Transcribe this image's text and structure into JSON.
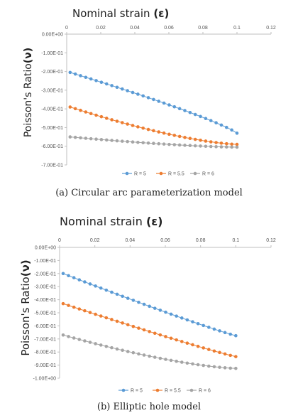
{
  "chart_data": [
    {
      "type": "line",
      "x_title": "Nominal strain",
      "x_title_symbol": "(ε)",
      "y_title": "Poisson's Ratio",
      "y_title_symbol": "(ν)",
      "caption": "(a)  Circular arc parameterization model",
      "x_ticks": [
        "0",
        "0.02",
        "0.04",
        "0.06",
        "0.08",
        "0.1",
        "0.12"
      ],
      "y_ticks": [
        "0.00E+00",
        "-1.00E-01",
        "-2.00E-01",
        "-3.00E-01",
        "-4.00E-01",
        "-5.00E-01",
        "-6.00E-01",
        "-7.00E-01"
      ],
      "xlim": [
        0,
        0.12
      ],
      "ylim": [
        -0.7,
        0
      ],
      "x_axis_position": "top",
      "grid": false,
      "legend_position": "bottom",
      "series": [
        {
          "name": "R = 5",
          "color": "#5b9bd5",
          "start": [
            0.002,
            -0.205
          ],
          "end": [
            0.1,
            -0.53
          ],
          "curve": "slightly-concave"
        },
        {
          "name": "R = 5.5",
          "color": "#ed7d31",
          "start": [
            0.002,
            -0.39
          ],
          "end": [
            0.1,
            -0.59
          ],
          "curve": "convex"
        },
        {
          "name": "R = 6",
          "color": "#a5a5a5",
          "start": [
            0.002,
            -0.55
          ],
          "end": [
            0.1,
            -0.605
          ],
          "curve": "convex"
        }
      ]
    },
    {
      "type": "line",
      "x_title": "Nominal strain",
      "x_title_symbol": "(ε)",
      "y_title": "Poisson's Ratio",
      "y_title_symbol": "(ν)",
      "caption": "(b)  Elliptic hole model",
      "x_ticks": [
        "0",
        "0.02",
        "0.04",
        "0.06",
        "0.08",
        "0.1",
        "0.12"
      ],
      "y_ticks": [
        "0.00E+00",
        "-1.00E-01",
        "-2.00E-01",
        "-3.00E-01",
        "-4.00E-01",
        "-5.00E-01",
        "-6.00E-01",
        "-7.00E-01",
        "-8.00E-01",
        "-9.00E-01",
        "-1.00E+00"
      ],
      "xlim": [
        0,
        0.12
      ],
      "ylim": [
        -1.0,
        0
      ],
      "x_axis_position": "top",
      "grid": false,
      "legend_position": "bottom",
      "series": [
        {
          "name": "R = 5",
          "color": "#5b9bd5",
          "start": [
            0.002,
            -0.2
          ],
          "end": [
            0.1,
            -0.675
          ],
          "curve": "near-linear"
        },
        {
          "name": "R = 5.5",
          "color": "#ed7d31",
          "start": [
            0.002,
            -0.43
          ],
          "end": [
            0.1,
            -0.835
          ],
          "curve": "near-linear"
        },
        {
          "name": "R = 6",
          "color": "#a5a5a5",
          "start": [
            0.002,
            -0.67
          ],
          "end": [
            0.1,
            -0.925
          ],
          "curve": "convex"
        }
      ]
    }
  ]
}
